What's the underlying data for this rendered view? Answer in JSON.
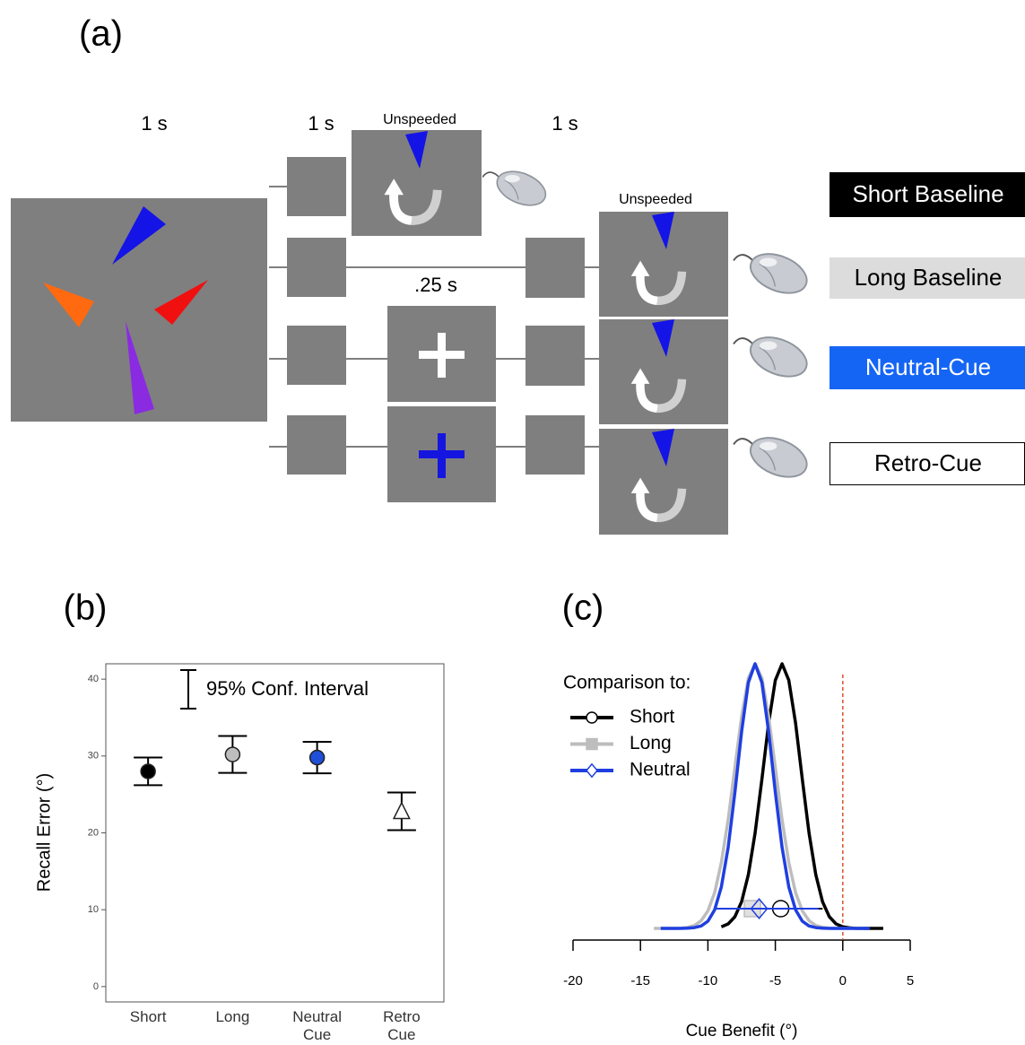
{
  "panel_a": {
    "label": "(a)",
    "durations": [
      "1 s",
      "1 s",
      "1 s"
    ],
    "unspeeded": [
      "Unspeeded",
      "Unspeeded"
    ],
    "cue_duration": ".25 s",
    "conditions": [
      "Short Baseline",
      "Long Baseline",
      "Neutral-Cue",
      "Retro-Cue"
    ]
  },
  "chart_data": [
    {
      "type": "errorbar",
      "panel_label": "(b)",
      "ylabel": "Recall Error (°)",
      "categories": [
        "Short",
        "Long",
        "Neutral Cue",
        "Retro Cue"
      ],
      "values": [
        28,
        30.2,
        29.8,
        22.8
      ],
      "errors": [
        1.8,
        2.4,
        2.05,
        2.45
      ],
      "colors": [
        "#000000",
        "#bdbdbd",
        "#1f4fd8",
        "#ffffff"
      ],
      "markers": [
        "circle",
        "circle",
        "circle",
        "triangle"
      ],
      "ylim": [
        -2,
        42
      ],
      "yticks": [
        0,
        10,
        20,
        30,
        40
      ],
      "annotation": "95% Conf. Interval"
    },
    {
      "type": "line",
      "panel_label": "(c)",
      "xlabel": "Cue Benefit (°)",
      "legend_title": "Comparison to:",
      "x": [
        -14,
        -13.5,
        -13,
        -12.5,
        -12,
        -11.5,
        -11,
        -10.5,
        -10,
        -9.5,
        -9,
        -8.5,
        -8,
        -7.5,
        -7,
        -6.5,
        -6,
        -5.5,
        -5,
        -4.5,
        -4,
        -3.5,
        -3,
        -2.5,
        -2,
        -1.5,
        -1,
        -0.5,
        0,
        0.5,
        1,
        1.5,
        2,
        2.5,
        3
      ],
      "series": [
        {
          "name": "Short",
          "color": "#000000",
          "marker": "circle",
          "values": [
            null,
            null,
            null,
            null,
            null,
            null,
            null,
            null,
            null,
            null,
            0.006,
            0.017,
            0.044,
            0.101,
            0.203,
            0.36,
            0.563,
            0.775,
            0.938,
            1,
            0.938,
            0.775,
            0.563,
            0.36,
            0.203,
            0.101,
            0.044,
            0.017,
            0.006,
            0.002,
            0,
            0,
            0,
            0,
            0
          ],
          "point": -4.6,
          "interval": [
            -9.2,
            -1.5
          ]
        },
        {
          "name": "Long",
          "color": "#bdbdbd",
          "marker": "square",
          "values": [
            0,
            0,
            0,
            0,
            0.001,
            0.004,
            0.011,
            0.029,
            0.066,
            0.135,
            0.249,
            0.411,
            0.607,
            0.801,
            0.946,
            1,
            0.946,
            0.801,
            0.607,
            0.411,
            0.249,
            0.135,
            0.066,
            0.029,
            0.011,
            0.004,
            0.001,
            0,
            0,
            0,
            0,
            0,
            null,
            null,
            null
          ],
          "point": -6.7,
          "interval": [
            -9.5,
            -2
          ]
        },
        {
          "name": "Neutral",
          "color": "#1f3fe0",
          "marker": "diamond",
          "values": [
            null,
            0,
            0,
            0,
            0,
            0.001,
            0.003,
            0.009,
            0.027,
            0.07,
            0.157,
            0.306,
            0.514,
            0.744,
            0.929,
            1,
            0.929,
            0.744,
            0.514,
            0.306,
            0.157,
            0.07,
            0.027,
            0.009,
            0.003,
            0.001,
            0,
            0,
            0,
            0,
            0,
            0,
            0,
            null,
            null
          ],
          "point": -6.2,
          "interval": [
            -9.5,
            -1.8
          ]
        }
      ],
      "xlim": [
        -20,
        5
      ],
      "xticks": [
        -20,
        -15,
        -10,
        -5,
        0,
        5
      ],
      "ylim": [
        0,
        1
      ],
      "reference_line": 0,
      "reference_color": "#d9532c"
    }
  ]
}
